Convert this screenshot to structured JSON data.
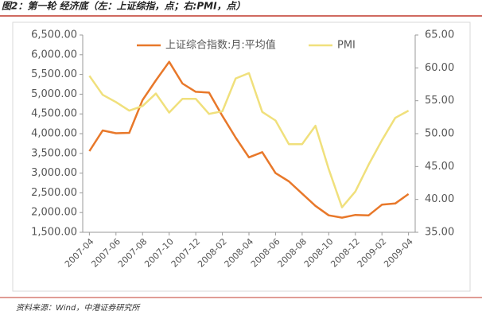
{
  "chart_data": {
    "type": "line",
    "title": "图2：第一轮 经济底（左：上证综指，点；右:PMI，点）",
    "source": "资料来源：Wind，中港证券研究所",
    "categories": [
      "2007-04",
      null,
      "2007-06",
      null,
      "2007-08",
      null,
      "2007-10",
      null,
      "2007-12",
      null,
      "2008-02",
      null,
      "2008-04",
      null,
      "2008-06",
      null,
      "2008-08",
      null,
      "2008-10",
      null,
      "2008-12",
      null,
      "2009-02",
      null,
      "2009-04"
    ],
    "series": [
      {
        "name": "上证综合指数:月:平均值",
        "color": "#e8782a",
        "axis": "y",
        "values": [
          3556,
          4080,
          4010,
          4020,
          4850,
          5350,
          5820,
          5270,
          5060,
          5040,
          4450,
          3900,
          3400,
          3530,
          3000,
          2790,
          2480,
          2170,
          1930,
          1870,
          1940,
          1930,
          2200,
          2230,
          2470
        ]
      },
      {
        "name": "PMI",
        "color": "#f0e07c",
        "axis": "y2",
        "values": [
          58.8,
          55.9,
          54.8,
          53.5,
          54.2,
          56.1,
          53.2,
          55.3,
          55.3,
          53.0,
          53.4,
          58.4,
          59.2,
          53.3,
          52.0,
          48.4,
          48.4,
          51.2,
          44.6,
          38.8,
          41.2,
          45.3,
          49.0,
          52.4,
          53.5
        ]
      }
    ],
    "ylim": [
      1500,
      6500
    ],
    "yticks": [
      {
        "value": 1500,
        "label": "1,500.00"
      },
      {
        "value": 2000,
        "label": "2,000.00"
      },
      {
        "value": 2500,
        "label": "2,500.00"
      },
      {
        "value": 3000,
        "label": "3,000.00"
      },
      {
        "value": 3500,
        "label": "3,500.00"
      },
      {
        "value": 4000,
        "label": "4,000.00"
      },
      {
        "value": 4500,
        "label": "4,500.00"
      },
      {
        "value": 5000,
        "label": "5,000.00"
      },
      {
        "value": 5500,
        "label": "5,500.00"
      },
      {
        "value": 6000,
        "label": "6,000.00"
      },
      {
        "value": 6500,
        "label": "6,500.00"
      }
    ],
    "y2lim": [
      35,
      65
    ],
    "y2ticks": [
      {
        "value": 35,
        "label": "35.00"
      },
      {
        "value": 40,
        "label": "40.00"
      },
      {
        "value": 45,
        "label": "45.00"
      },
      {
        "value": 50,
        "label": "50.00"
      },
      {
        "value": 55,
        "label": "55.00"
      },
      {
        "value": 60,
        "label": "60.00"
      },
      {
        "value": 65,
        "label": "65.00"
      }
    ],
    "grid": false,
    "legend": "top"
  }
}
